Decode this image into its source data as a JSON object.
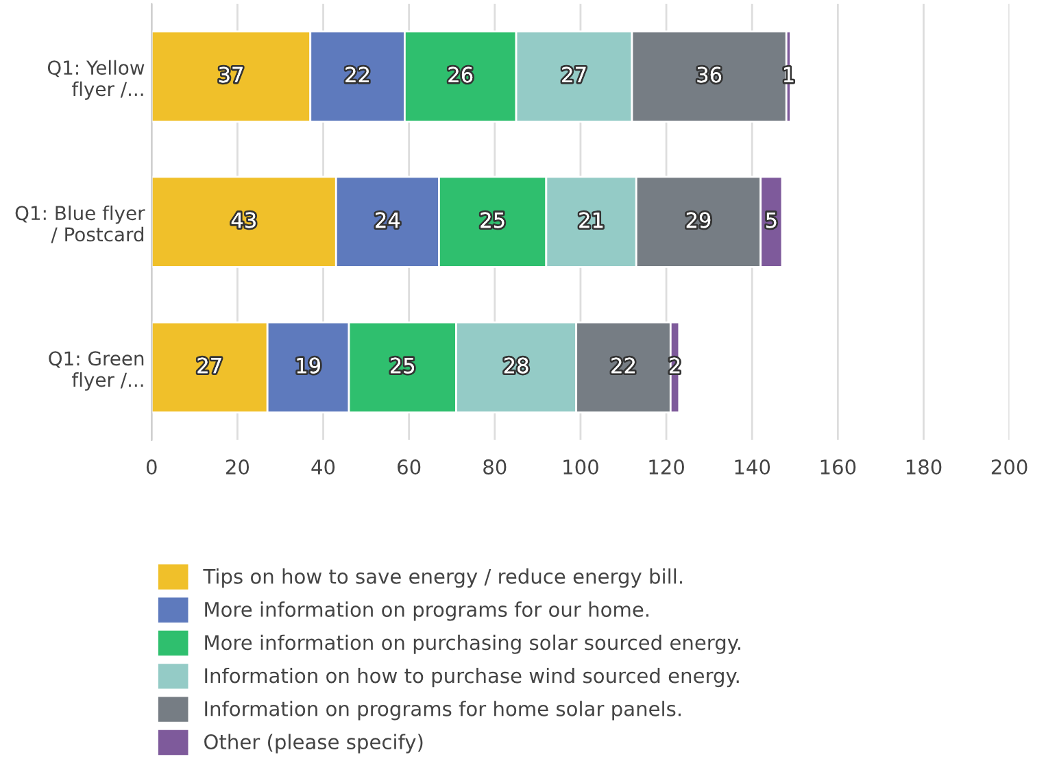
{
  "chart_data": {
    "type": "bar",
    "orientation": "horizontal",
    "stacked": true,
    "data_labels": true,
    "grid": "x",
    "legend": "bottom",
    "categories": [
      "Q1: Yellow\nflyer /...",
      "Q1: Blue flyer\n/ Postcard",
      "Q1: Green\nflyer /..."
    ],
    "xlim": [
      0,
      200
    ],
    "xticks": [
      0,
      20,
      40,
      60,
      80,
      100,
      120,
      140,
      160,
      180,
      200
    ],
    "series": [
      {
        "name": "Tips on how to save energy / reduce energy bill.",
        "color": "#f0c02a",
        "values": [
          37,
          43,
          27
        ]
      },
      {
        "name": "More information on programs for our home.",
        "color": "#5e7abd",
        "values": [
          22,
          24,
          19
        ]
      },
      {
        "name": "More information on purchasing solar sourced energy.",
        "color": "#2fbf6e",
        "values": [
          26,
          25,
          25
        ]
      },
      {
        "name": "Information on how to purchase wind sourced energy.",
        "color": "#94cbc6",
        "values": [
          27,
          21,
          28
        ]
      },
      {
        "name": "Information on programs for home solar panels.",
        "color": "#767d84",
        "values": [
          36,
          29,
          22
        ]
      },
      {
        "name": "Other (please specify)",
        "color": "#7e5a9b",
        "values": [
          1,
          5,
          2
        ]
      }
    ]
  }
}
